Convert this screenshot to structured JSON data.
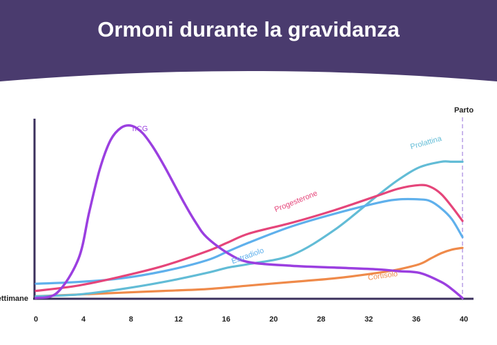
{
  "colors": {
    "header_bg": "#4a3b6e",
    "axis": "#3a2f5c",
    "hcg": "#9b3fe0",
    "progesterone": "#e5457a",
    "estradiol": "#5fb0ec",
    "prolactin": "#62bcd6",
    "cortisol": "#ef8a4a",
    "parto_line": "#c9b6ec"
  },
  "chart_data": {
    "type": "line",
    "title": "Ormoni durante la gravidanza",
    "xlabel": "Settimane",
    "ylabel": "",
    "x_ticks": [
      "0",
      "4",
      "8",
      "12",
      "16",
      "20",
      "28",
      "32",
      "36",
      "40"
    ],
    "annotation": "Parto",
    "grid": false,
    "legend": "inline",
    "series": [
      {
        "key": "hcg",
        "name": "hCG",
        "x": [
          0,
          2,
          4,
          5,
          6,
          7,
          8,
          9,
          10,
          11,
          12,
          13,
          14,
          15,
          16,
          18,
          20,
          24,
          28,
          32,
          34,
          36,
          38,
          39,
          40
        ],
        "y": [
          0,
          3,
          22,
          48,
          72,
          88,
          95,
          96,
          92,
          84,
          74,
          63,
          52,
          42,
          34,
          25,
          20,
          18,
          17,
          16,
          15,
          14,
          9,
          5,
          0
        ]
      },
      {
        "key": "progesterone",
        "name": "Progesterone",
        "x": [
          0,
          4,
          8,
          12,
          16,
          18,
          20,
          24,
          28,
          32,
          34,
          36,
          37,
          38,
          39,
          40
        ],
        "y": [
          4,
          7,
          12,
          18,
          26,
          31,
          36,
          42,
          49,
          57,
          61,
          63,
          62,
          58,
          51,
          43
        ]
      },
      {
        "key": "estradiol",
        "name": "Estradiolo",
        "x": [
          0,
          4,
          8,
          12,
          16,
          18,
          20,
          24,
          28,
          32,
          34,
          36,
          37,
          38,
          39,
          40
        ],
        "y": [
          8,
          9,
          11,
          15,
          21,
          26,
          31,
          40,
          47,
          53,
          55,
          55,
          54,
          50,
          44,
          34
        ]
      },
      {
        "key": "prolactin",
        "name": "Prolattina",
        "x": [
          0,
          4,
          8,
          12,
          16,
          18,
          20,
          24,
          28,
          32,
          34,
          36,
          38,
          39,
          40
        ],
        "y": [
          1,
          2,
          5,
          9,
          14,
          17,
          19,
          24,
          38,
          57,
          66,
          73,
          76,
          76,
          76
        ]
      },
      {
        "key": "cortisol",
        "name": "Cortisolo",
        "x": [
          0,
          4,
          8,
          12,
          16,
          20,
          24,
          28,
          32,
          34,
          36,
          37,
          38,
          39,
          40
        ],
        "y": [
          1,
          2,
          3,
          4,
          5,
          7,
          9,
          11,
          14,
          16,
          19,
          22,
          25,
          27,
          28
        ]
      }
    ]
  }
}
